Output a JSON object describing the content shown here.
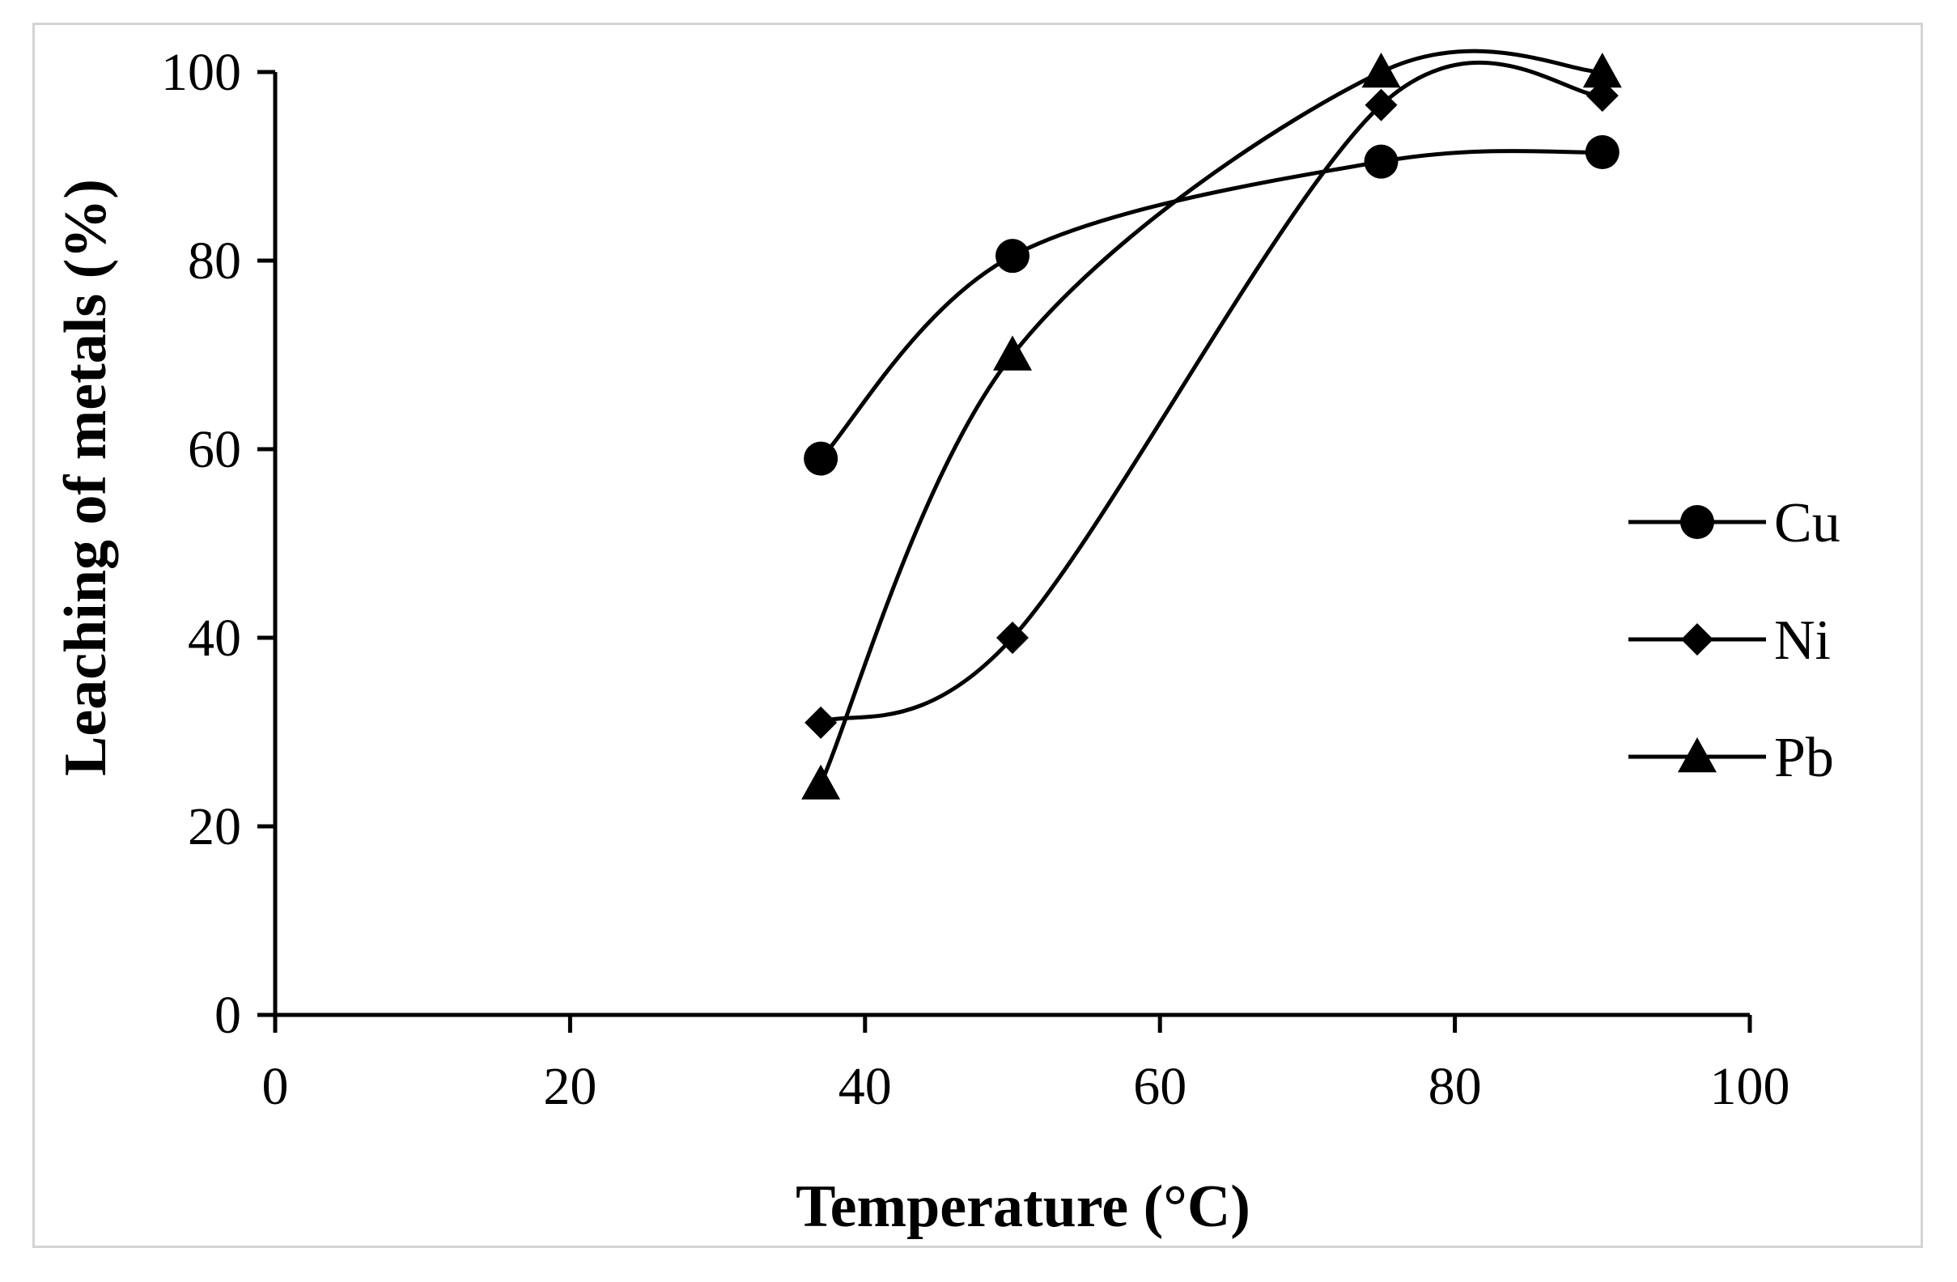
{
  "chart_data": {
    "type": "line",
    "title": "",
    "xlabel": "Temperature (°C)",
    "ylabel": "Leaching of metals (%)",
    "xlim": [
      0,
      100
    ],
    "ylim": [
      0,
      100
    ],
    "xticks": [
      0,
      20,
      40,
      60,
      80,
      100
    ],
    "yticks": [
      0,
      20,
      40,
      60,
      80,
      100
    ],
    "grid": false,
    "smooth": true,
    "legend_position": "right",
    "line_color": "#000000",
    "series": [
      {
        "name": "Cu",
        "marker": "circle",
        "x": [
          37,
          50,
          75,
          90
        ],
        "y": [
          59,
          80.5,
          90.5,
          91.5
        ]
      },
      {
        "name": "Ni",
        "marker": "diamond",
        "x": [
          37,
          50,
          75,
          90
        ],
        "y": [
          31,
          40,
          96.5,
          97.5
        ]
      },
      {
        "name": "Pb",
        "marker": "triangle",
        "x": [
          37,
          50,
          75,
          90
        ],
        "y": [
          24.5,
          70,
          100,
          100
        ]
      }
    ]
  }
}
